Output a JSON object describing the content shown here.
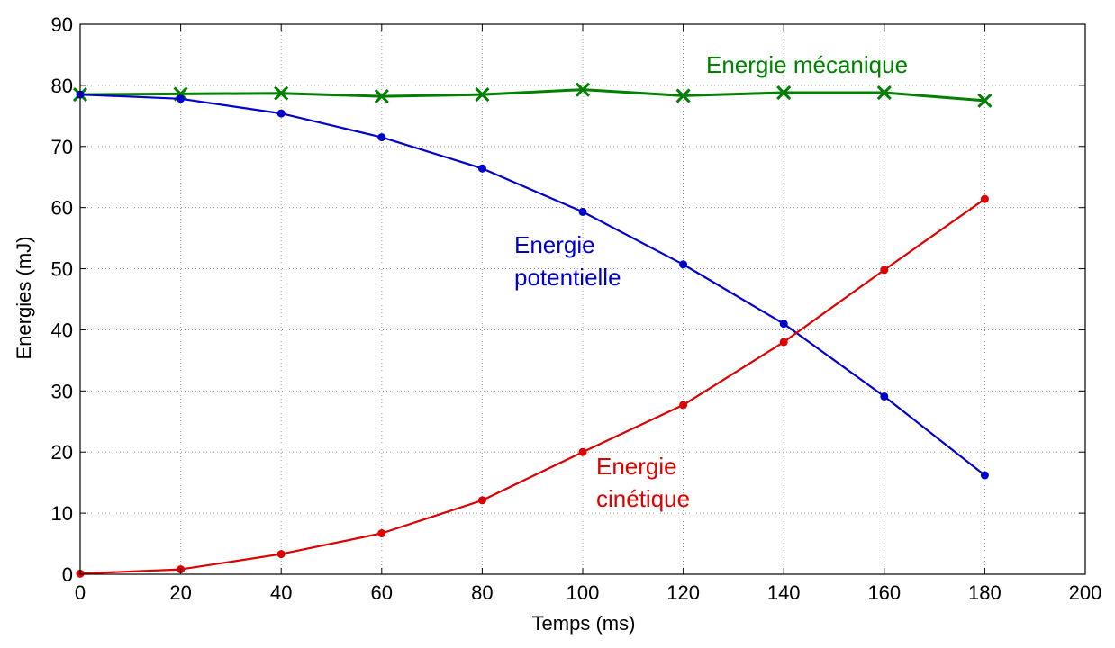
{
  "chart_data": {
    "type": "line",
    "title": "",
    "xlabel": "Temps (ms)",
    "ylabel": "Energies (mJ)",
    "xlim": [
      0,
      200
    ],
    "ylim": [
      0,
      90
    ],
    "xticks": [
      0,
      20,
      40,
      60,
      80,
      100,
      120,
      140,
      160,
      180,
      200
    ],
    "yticks": [
      0,
      10,
      20,
      30,
      40,
      50,
      60,
      70,
      80,
      90
    ],
    "grid": true,
    "x": [
      0,
      20,
      40,
      60,
      80,
      100,
      120,
      140,
      160,
      180
    ],
    "series": [
      {
        "name": "Energie mécanique",
        "color": "#008000",
        "marker": "x",
        "values": [
          78.5,
          78.6,
          78.7,
          78.2,
          78.5,
          79.3,
          78.3,
          78.8,
          78.8,
          77.5
        ]
      },
      {
        "name": "Energie potentielle",
        "color": "#0000cc",
        "marker": "dot",
        "values": [
          78.5,
          77.8,
          75.4,
          71.5,
          66.4,
          59.3,
          50.7,
          41.0,
          29.1,
          16.2
        ]
      },
      {
        "name": "Energie cinétique",
        "color": "#dd0000",
        "marker": "dot",
        "values": [
          0.1,
          0.8,
          3.3,
          6.7,
          12.1,
          20.0,
          27.7,
          38.0,
          49.8,
          61.4
        ]
      }
    ],
    "annotations": {
      "mecanique": [
        "Energie mécanique"
      ],
      "potentielle": [
        "Energie",
        "potentielle"
      ],
      "cinetique": [
        "Energie",
        "cinétique"
      ]
    }
  }
}
